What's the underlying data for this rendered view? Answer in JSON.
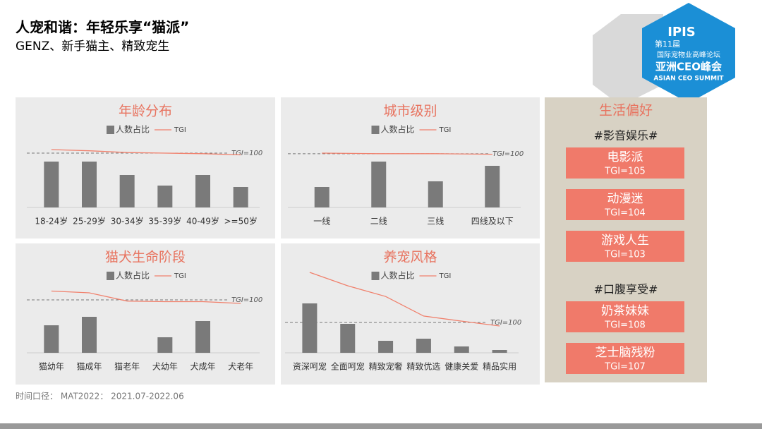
{
  "header": {
    "title": "人宠和谐：年轻乐享“猫派”",
    "subtitle": "GENZ、新手猫主、精致宠生"
  },
  "logo": {
    "name": "IPIS",
    "edition": "第11届",
    "forum": "国际宠物业高峰论坛",
    "summit": "亚洲CEO峰会",
    "summit_en": "ASIAN CEO SUMMIT"
  },
  "chart_data": [
    {
      "type": "bar",
      "title": "年龄分布",
      "categories": [
        "18-24岁",
        "25-29岁",
        "30-34岁",
        "35-39岁",
        "40-49岁",
        ">=50岁"
      ],
      "series": [
        {
          "name": "人数占比",
          "color": "#7a7a7a",
          "values": [
            65,
            65,
            46,
            31,
            46,
            29
          ]
        },
        {
          "name": "TGI",
          "color": "#f0806c",
          "axis": "y2",
          "values": [
            106,
            104,
            101,
            100,
            99,
            97
          ]
        }
      ],
      "ylim": [
        0,
        130
      ],
      "y2lim": [
        7,
        164
      ],
      "reference": {
        "value": 100,
        "label": "TGI=100"
      }
    },
    {
      "type": "bar",
      "title": "城市级别",
      "categories": [
        "一线",
        "二线",
        "三线",
        "四线及以下"
      ],
      "series": [
        {
          "name": "人数占比",
          "color": "#7a7a7a",
          "values": [
            29,
            65,
            37,
            59
          ]
        },
        {
          "name": "TGI",
          "color": "#f0806c",
          "axis": "y2",
          "values": [
            101,
            100,
            100,
            99
          ]
        }
      ],
      "ylim": [
        0,
        130
      ],
      "y2lim": [
        8,
        165
      ],
      "reference": {
        "value": 100,
        "label": "TGI=100"
      }
    },
    {
      "type": "bar",
      "title": "猫犬生命阶段",
      "categories": [
        "猫幼年",
        "猫成年",
        "猫老年",
        "犬幼年",
        "犬成年",
        "犬老年"
      ],
      "series": [
        {
          "name": "人数占比",
          "color": "#7a7a7a",
          "values": [
            39,
            51,
            0,
            22,
            45,
            0
          ]
        },
        {
          "name": "TGI",
          "color": "#f0806c",
          "axis": "y2",
          "values": [
            115,
            112,
            98,
            97,
            97,
            94
          ]
        }
      ],
      "ylim": [
        0,
        130
      ],
      "y2lim": [
        10,
        166
      ],
      "reference": {
        "value": 100,
        "label": "TGI=100"
      }
    },
    {
      "type": "bar",
      "title": "养宠风格",
      "categories": [
        "资深呵宠",
        "全面呵宠",
        "精致宠奢",
        "精致优选",
        "健康关爱",
        "精品实用"
      ],
      "series": [
        {
          "name": "人数占比",
          "color": "#7a7a7a",
          "values": [
            70,
            41,
            17,
            20,
            9,
            4
          ]
        },
        {
          "name": "TGI",
          "color": "#f0806c",
          "axis": "y2",
          "values": [
            287,
            237,
            197,
            124,
            105,
            87
          ]
        }
      ],
      "ylim": [
        0,
        130
      ],
      "y2lim": [
        -13,
        329
      ],
      "reference": {
        "value": 100,
        "label": "TGI=100"
      }
    }
  ],
  "panel": {
    "title": "生活偏好",
    "groups": [
      {
        "name": "#影音娱乐#",
        "items": [
          {
            "name": "电影派",
            "tgi": "TGI=105"
          },
          {
            "name": "动漫迷",
            "tgi": "TGI=104"
          },
          {
            "name": "游戏人生",
            "tgi": "TGI=103"
          }
        ]
      },
      {
        "name": "#口腹享受#",
        "items": [
          {
            "name": "奶茶妹妹",
            "tgi": "TGI=108"
          },
          {
            "name": "芝士脑残粉",
            "tgi": "TGI=107"
          }
        ]
      }
    ]
  },
  "footer": "时间口径： MAT2022： 2021.07-2022.06"
}
